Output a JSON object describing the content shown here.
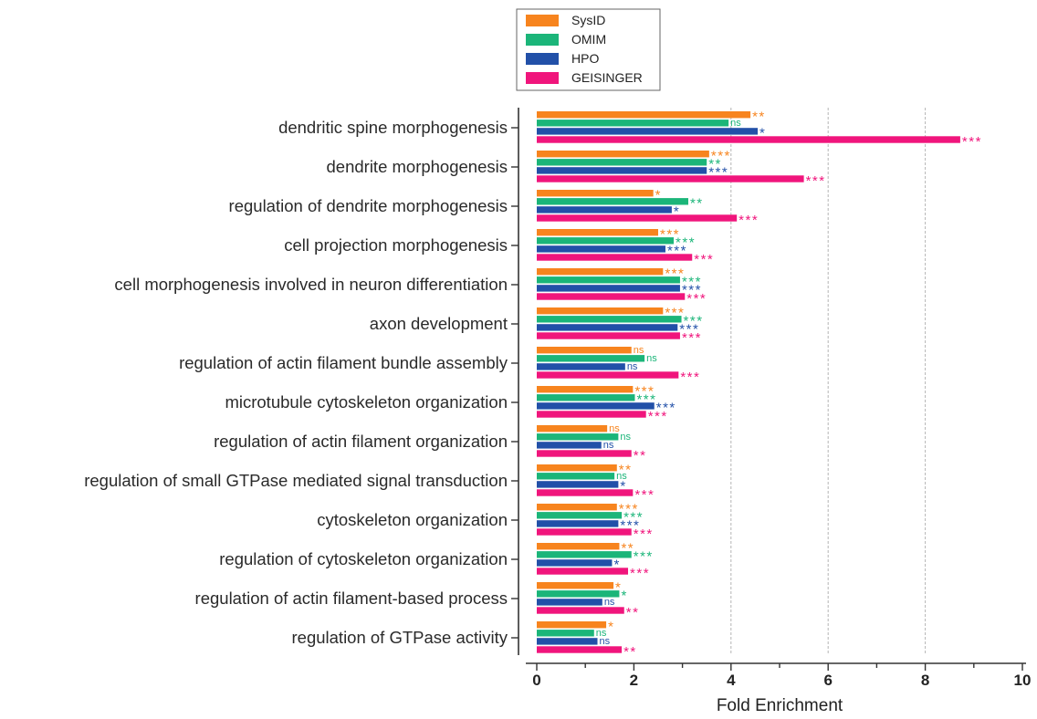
{
  "chart_data": {
    "type": "bar",
    "orientation": "horizontal",
    "xlabel": "Fold Enrichment",
    "xlim": [
      0,
      10
    ],
    "xticks": [
      "0",
      "2",
      "4",
      "6",
      "8",
      "10"
    ],
    "grid": "vertical dashed at 4, 6, 8",
    "legend_position": "top-center",
    "categories": [
      "dendritic spine morphogenesis",
      "dendrite morphogenesis",
      "regulation of dendrite morphogenesis",
      "cell projection morphogenesis",
      "cell morphogenesis involved in neuron differentiation",
      "axon development",
      "regulation of actin filament bundle assembly",
      "microtubule cytoskeleton organization",
      "regulation of actin filament organization",
      "regulation of small GTPase mediated signal transduction",
      "cytoskeleton organization",
      "regulation of cytoskeleton organization",
      "regulation of actin filament-based process",
      "regulation of GTPase activity"
    ],
    "series": [
      {
        "name": "SysID",
        "color": "#F7841E",
        "values": [
          4.4,
          3.55,
          2.4,
          2.5,
          2.6,
          2.6,
          1.95,
          1.98,
          1.45,
          1.65,
          1.65,
          1.7,
          1.58,
          1.43
        ],
        "significance": [
          "**",
          "***",
          "*",
          "***",
          "***",
          "***",
          "ns",
          "***",
          "ns",
          "**",
          "***",
          "**",
          "*",
          "*"
        ]
      },
      {
        "name": "OMIM",
        "color": "#1BB579",
        "values": [
          3.95,
          3.5,
          3.12,
          2.82,
          2.95,
          2.98,
          2.22,
          2.02,
          1.68,
          1.6,
          1.75,
          1.95,
          1.7,
          1.18
        ],
        "significance": [
          "ns",
          "**",
          "**",
          "***",
          "***",
          "***",
          "ns",
          "***",
          "ns",
          "ns",
          "***",
          "***",
          "*",
          "ns"
        ]
      },
      {
        "name": "HPO",
        "color": "#2250A8",
        "values": [
          4.55,
          3.5,
          2.78,
          2.65,
          2.95,
          2.9,
          1.82,
          2.42,
          1.33,
          1.68,
          1.68,
          1.55,
          1.35,
          1.25
        ],
        "significance": [
          "*",
          "***",
          "*",
          "***",
          "***",
          "***",
          "ns",
          "***",
          "ns",
          "*",
          "***",
          "*",
          "ns",
          "ns"
        ]
      },
      {
        "name": "GEISINGER",
        "color": "#F0157C",
        "values": [
          8.72,
          5.5,
          4.12,
          3.2,
          3.05,
          2.95,
          2.92,
          2.25,
          1.95,
          1.98,
          1.95,
          1.88,
          1.8,
          1.75
        ],
        "significance": [
          "***",
          "***",
          "***",
          "***",
          "***",
          "***",
          "***",
          "***",
          "**",
          "***",
          "***",
          "***",
          "**",
          "**"
        ]
      }
    ]
  }
}
